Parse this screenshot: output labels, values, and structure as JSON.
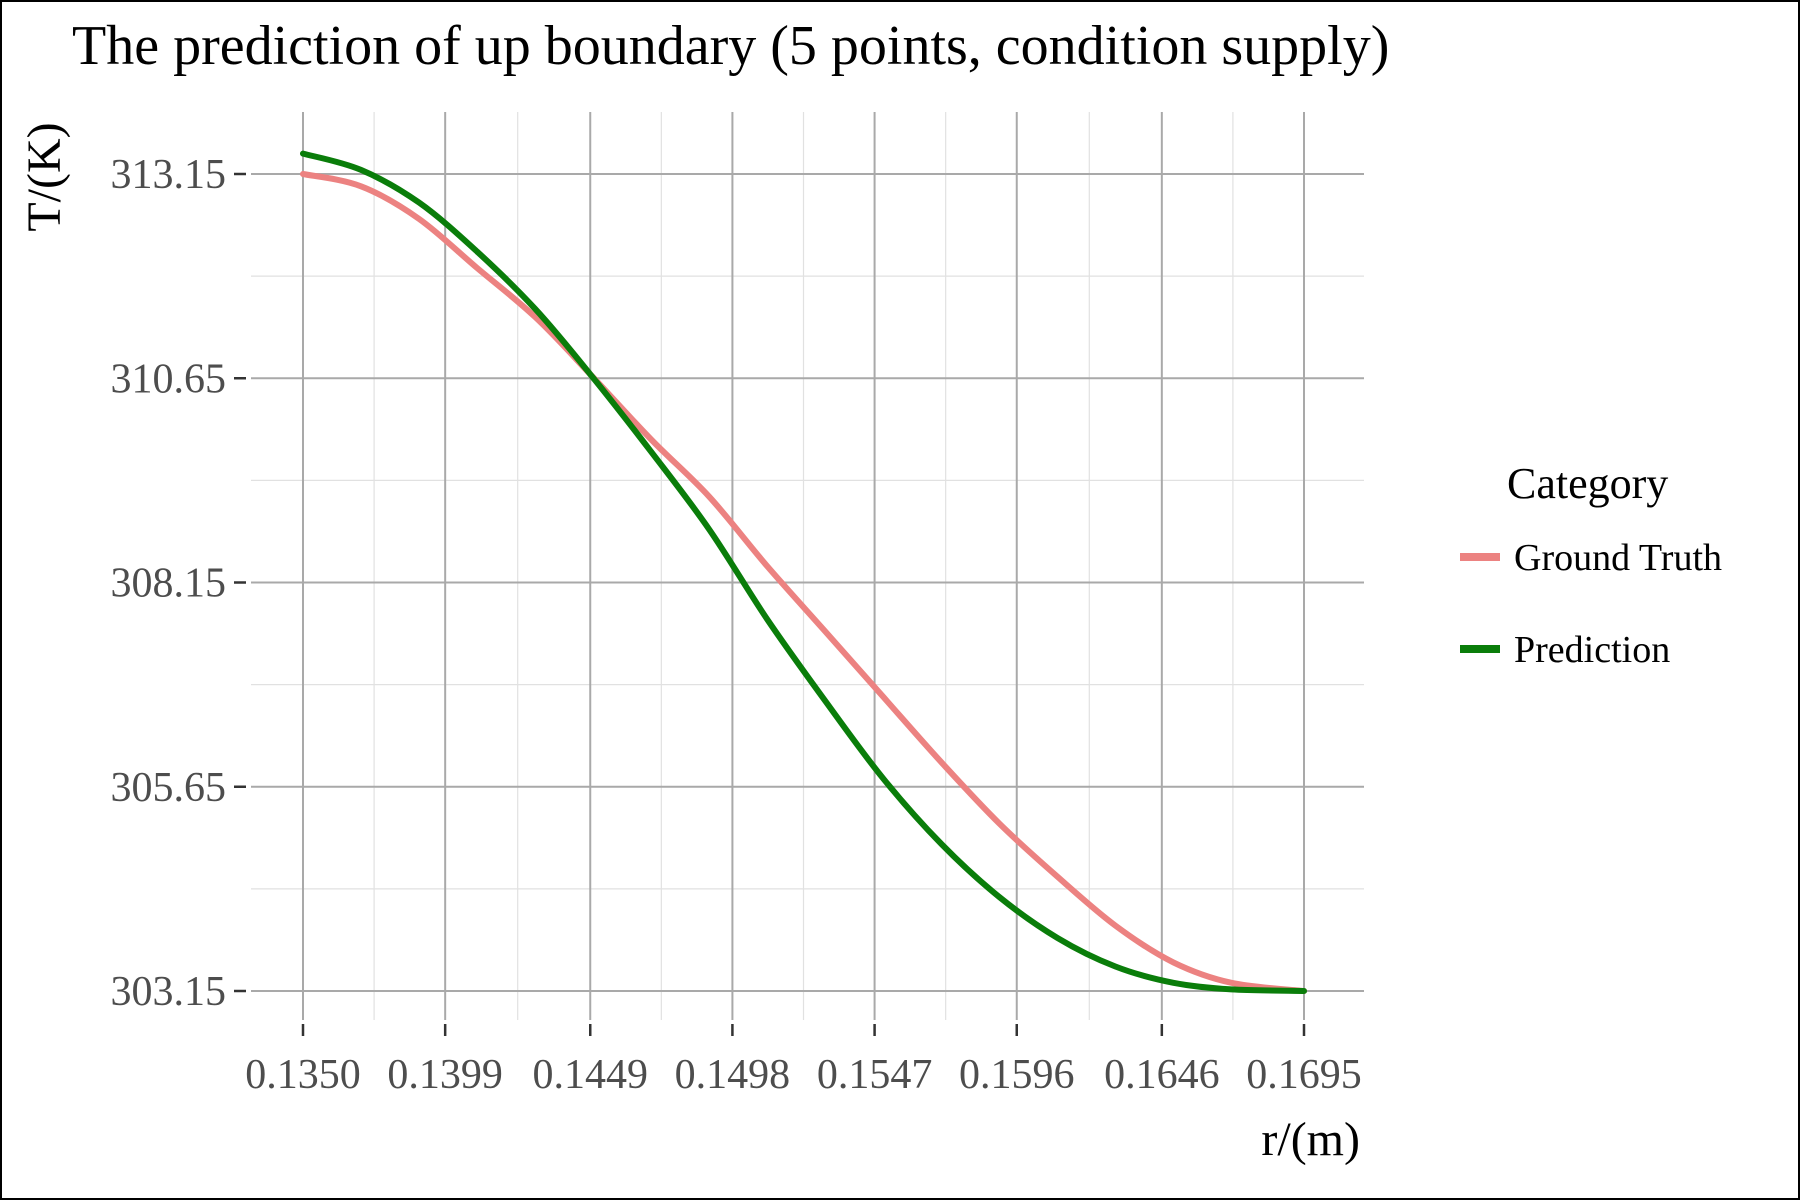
{
  "chart_data": {
    "type": "line",
    "title": "The prediction of up boundary (5 points, condition supply)",
    "xlabel": "r/(m)",
    "ylabel": "T/(K)",
    "xlim": [
      0.135,
      0.1695
    ],
    "ylim": [
      302.65,
      313.9
    ],
    "x_ticks": [
      0.135,
      0.1399,
      0.1449,
      0.1498,
      0.1547,
      0.1596,
      0.1646,
      0.1695
    ],
    "x_tick_labels": [
      "0.1350",
      "0.1399",
      "0.1449",
      "0.1498",
      "0.1547",
      "0.1596",
      "0.1646",
      "0.1695"
    ],
    "y_ticks": [
      303.15,
      305.65,
      308.15,
      310.65,
      313.15
    ],
    "y_tick_labels": [
      "303.15",
      "305.65",
      "308.15",
      "310.65",
      "313.15"
    ],
    "grid": true,
    "legend": {
      "title": "Category",
      "position": "right"
    },
    "series": [
      {
        "name": "Ground Truth",
        "color": "#ec8281",
        "x": [
          0.135,
          0.137,
          0.139,
          0.141,
          0.143,
          0.1449,
          0.147,
          0.149,
          0.151,
          0.153,
          0.155,
          0.157,
          0.159,
          0.161,
          0.163,
          0.165,
          0.167,
          0.1695
        ],
        "values": [
          313.15,
          313.0,
          312.6,
          312.0,
          311.4,
          310.7,
          309.9,
          309.2,
          308.35,
          307.55,
          306.75,
          305.95,
          305.2,
          304.55,
          303.95,
          303.5,
          303.25,
          303.15
        ]
      },
      {
        "name": "Prediction",
        "color": "#0a7d0a",
        "x": [
          0.135,
          0.137,
          0.139,
          0.141,
          0.143,
          0.1449,
          0.147,
          0.149,
          0.151,
          0.153,
          0.155,
          0.157,
          0.159,
          0.161,
          0.163,
          0.165,
          0.167,
          0.1695
        ],
        "values": [
          313.4,
          313.2,
          312.8,
          312.2,
          311.5,
          310.7,
          309.75,
          308.8,
          307.7,
          306.7,
          305.75,
          304.95,
          304.3,
          303.8,
          303.45,
          303.25,
          303.17,
          303.15
        ]
      }
    ]
  }
}
